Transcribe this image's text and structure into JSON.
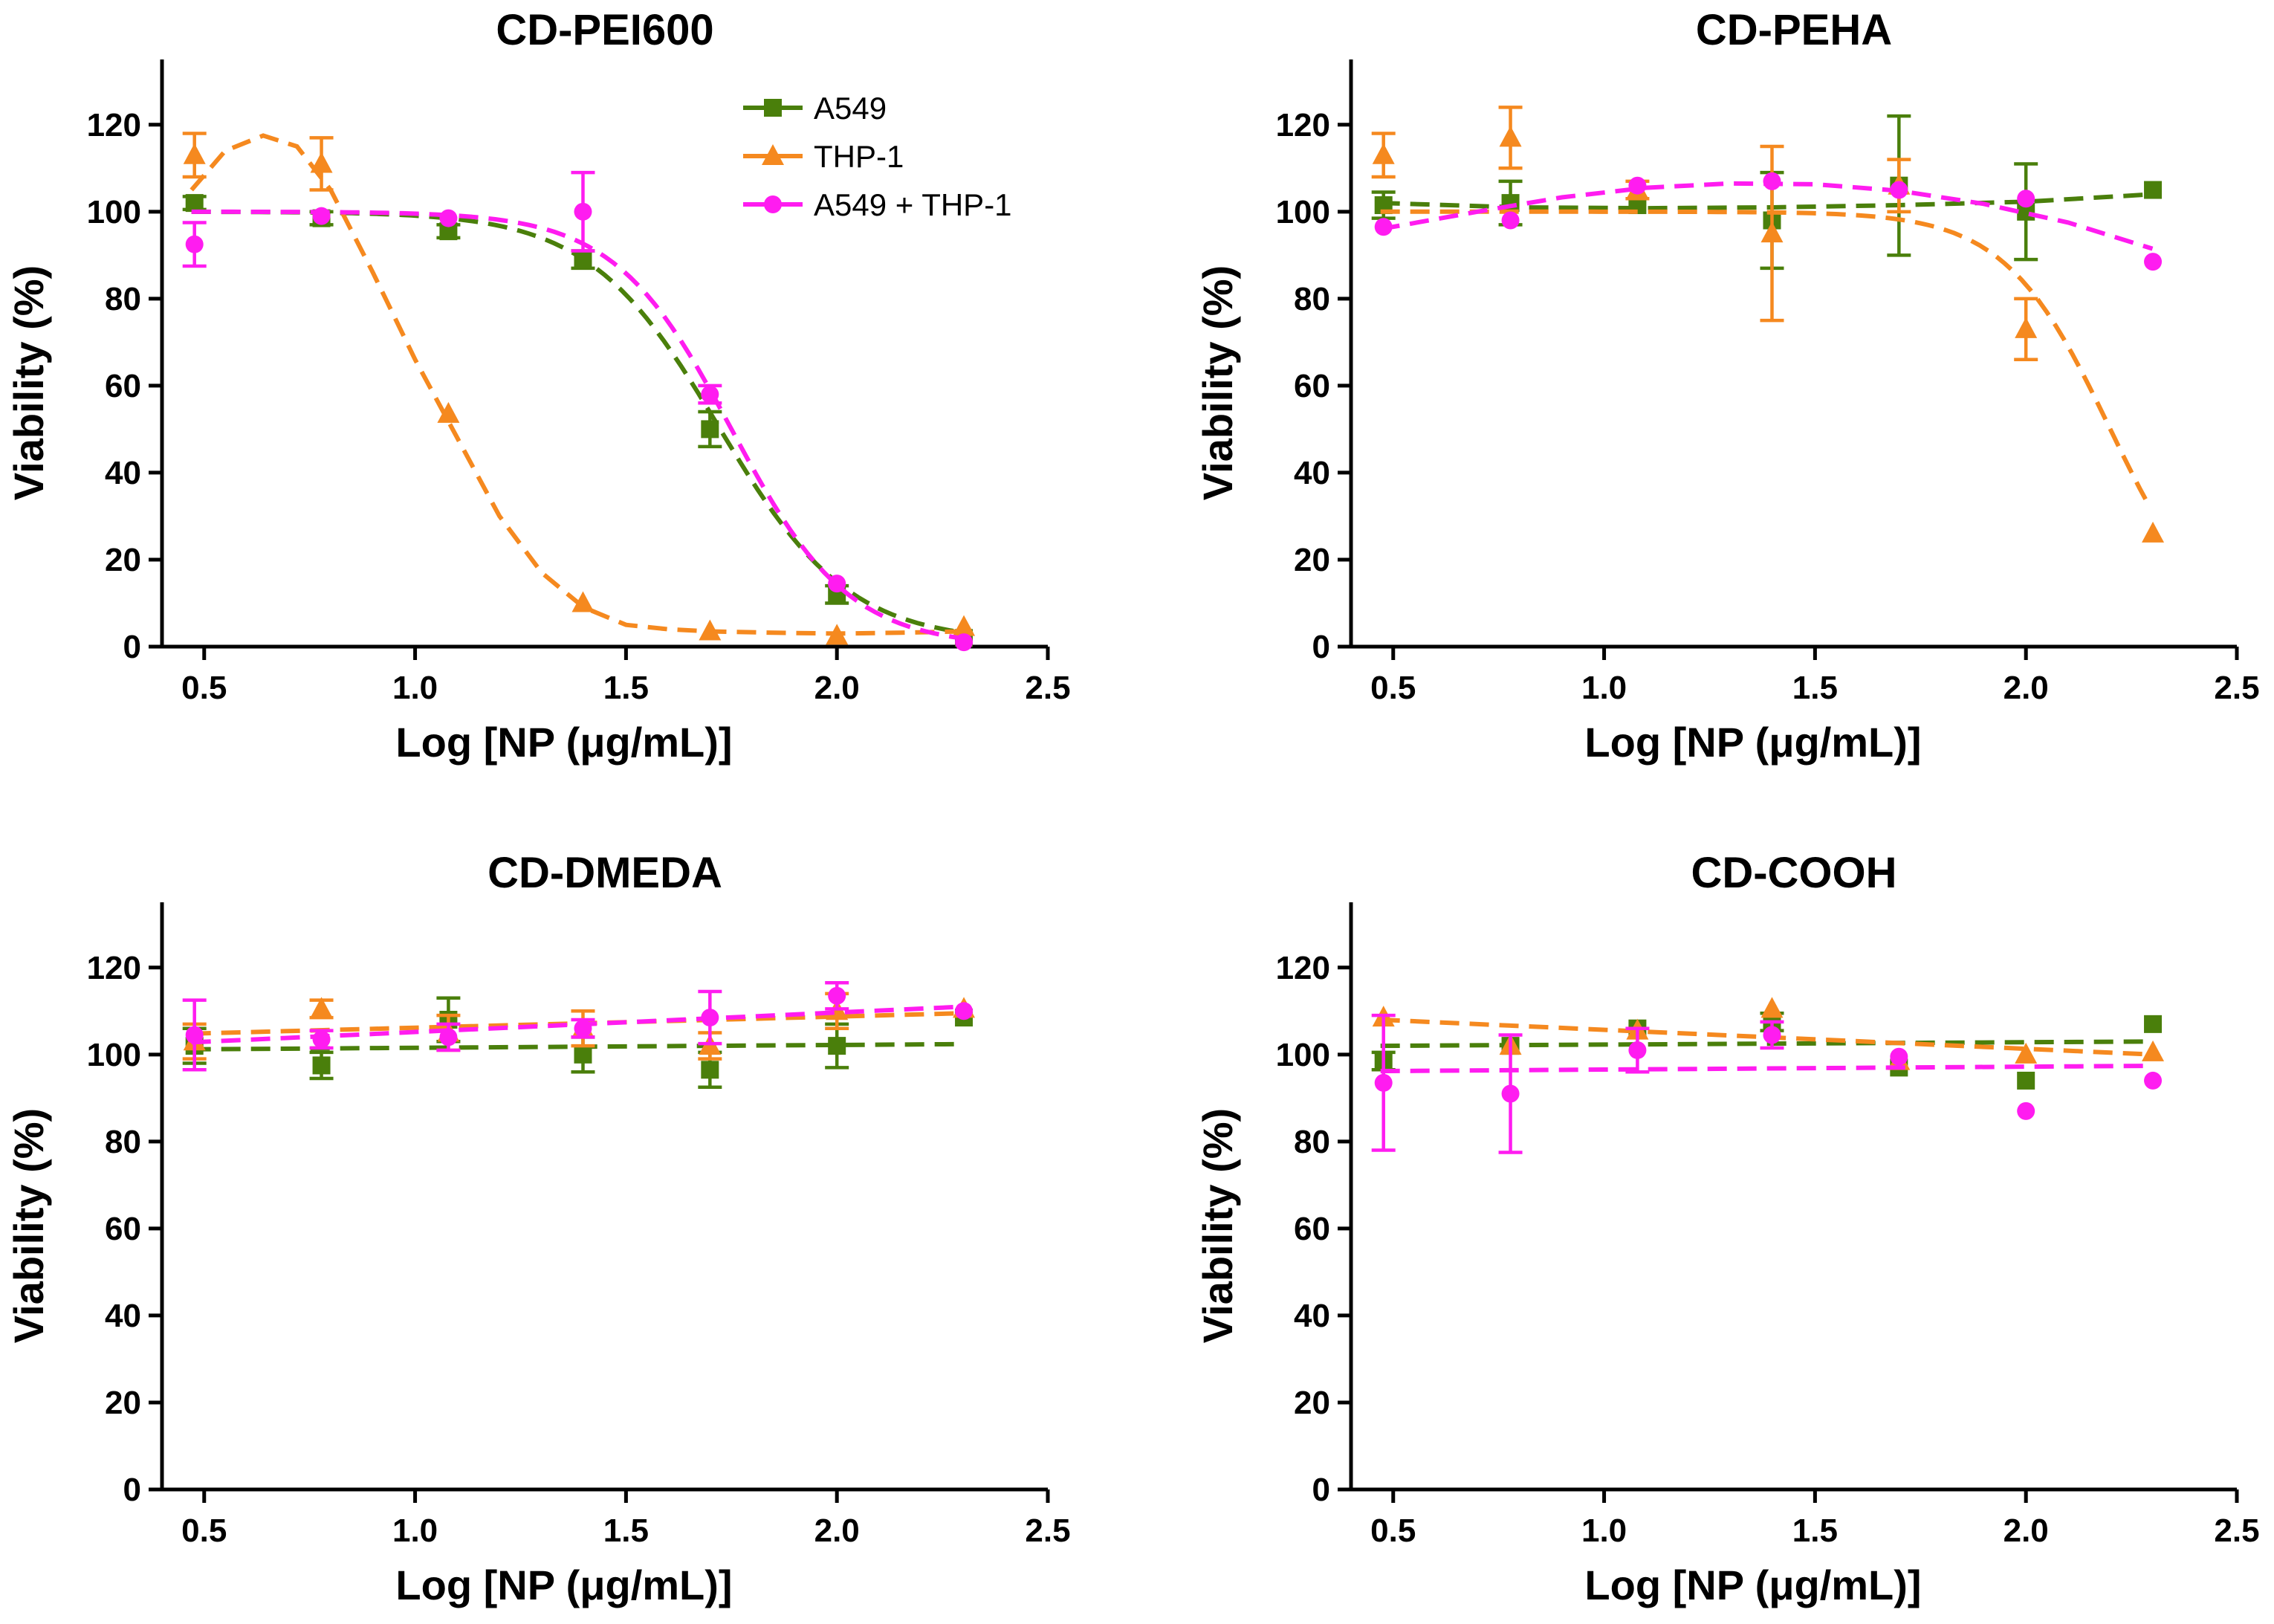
{
  "chart_data": [
    {
      "type": "scatter",
      "title": "CD-PEI600",
      "xlabel": "Log [NP (μg/mL)]",
      "ylabel": "Viability (%)",
      "xlim": [
        0.4,
        2.5
      ],
      "ylim": [
        0,
        135
      ],
      "xticks": [
        "0.5",
        "1.0",
        "1.5",
        "2.0",
        "2.5"
      ],
      "yticks": [
        "0",
        "20",
        "40",
        "60",
        "80",
        "100",
        "120"
      ],
      "legend": true,
      "legend_position": "top-right",
      "series": [
        {
          "name": "A549",
          "color": "#4a7f0b",
          "marker": "square",
          "x": [
            0.477,
            0.778,
            1.079,
            1.398,
            1.699,
            2.0,
            2.301
          ],
          "values": [
            102,
            98.5,
            95.5,
            89,
            50,
            12,
            2
          ],
          "err": [
            1.5,
            1.5,
            1.5,
            2,
            4,
            2,
            1
          ],
          "fit": {
            "type": "sigmoid",
            "top": 100,
            "bottom": 1,
            "x50": 1.72,
            "k": 6.5
          }
        },
        {
          "name": "THP-1",
          "color": "#f5891f",
          "marker": "triangle",
          "x": [
            0.477,
            0.778,
            1.079,
            1.398,
            1.699,
            2.0,
            2.301
          ],
          "values": [
            113,
            111,
            53.5,
            10,
            3.5,
            2.5,
            4.5
          ],
          "err": [
            5,
            6,
            1,
            1,
            0.5,
            0.5,
            0.5
          ],
          "fit": {
            "type": "points",
            "x": [
              0.47,
              0.55,
              0.64,
              0.72,
              0.8,
              0.9,
              1.0,
              1.1,
              1.2,
              1.3,
              1.4,
              1.5,
              1.6,
              1.7,
              1.85,
              2.0,
              2.15,
              2.3
            ],
            "y": [
              105,
              114,
              117.5,
              115,
              105,
              86,
              66,
              48,
              30,
              17,
              9,
              5,
              4,
              3.5,
              3.2,
              3.0,
              3.2,
              3.5
            ]
          }
        },
        {
          "name": "A549 + THP-1",
          "color": "#ff1cf0",
          "marker": "circle",
          "x": [
            0.477,
            0.778,
            1.079,
            1.398,
            1.699,
            2.0,
            2.301
          ],
          "values": [
            92.5,
            99,
            98.5,
            100,
            58,
            14.5,
            1
          ],
          "err": [
            5,
            1,
            1,
            9,
            2,
            1,
            0.5
          ],
          "fit": {
            "type": "sigmoid",
            "top": 100,
            "bottom": 0,
            "x50": 1.75,
            "k": 7.2
          }
        }
      ]
    },
    {
      "type": "scatter",
      "title": "CD-PEHA",
      "xlabel": "Log [NP (μg/mL)]",
      "ylabel": "Viability (%)",
      "xlim": [
        0.4,
        2.5
      ],
      "ylim": [
        0,
        135
      ],
      "xticks": [
        "0.5",
        "1.0",
        "1.5",
        "2.0",
        "2.5"
      ],
      "yticks": [
        "0",
        "20",
        "40",
        "60",
        "80",
        "100",
        "120"
      ],
      "series": [
        {
          "name": "A549",
          "color": "#4a7f0b",
          "marker": "square",
          "x": [
            0.477,
            0.778,
            1.079,
            1.398,
            1.699,
            2.0,
            2.301
          ],
          "values": [
            101.5,
            102,
            101.5,
            98,
            106,
            100,
            105
          ],
          "err": [
            3,
            5,
            1,
            11,
            16,
            11,
            1
          ],
          "fit": {
            "type": "points",
            "x": [
              0.47,
              0.8,
              1.1,
              1.4,
              1.7,
              2.0,
              2.3
            ],
            "y": [
              102,
              101,
              100.8,
              101,
              101.5,
              102.3,
              104
            ]
          }
        },
        {
          "name": "THP-1",
          "color": "#f5891f",
          "marker": "triangle",
          "x": [
            0.477,
            0.778,
            1.079,
            1.398,
            1.699,
            2.0,
            2.301
          ],
          "values": [
            113,
            117,
            105,
            95,
            106,
            73,
            26
          ],
          "err": [
            5,
            7,
            2,
            20,
            6,
            7,
            1
          ],
          "fit": {
            "type": "sigmoid",
            "top": 100,
            "bottom": 0,
            "x50": 2.2,
            "k": 8
          }
        },
        {
          "name": "A549 + THP-1",
          "color": "#ff1cf0",
          "marker": "circle",
          "x": [
            0.477,
            0.778,
            1.079,
            1.398,
            1.699,
            2.0,
            2.301
          ],
          "values": [
            96.5,
            98,
            106,
            107,
            105,
            103,
            88.5
          ],
          "err": [
            1,
            1,
            1,
            1,
            1,
            1,
            0.5
          ],
          "fit": {
            "type": "points",
            "x": [
              0.47,
              0.7,
              0.9,
              1.1,
              1.3,
              1.5,
              1.7,
              1.9,
              2.1,
              2.3
            ],
            "y": [
              96,
              100,
              103.3,
              105.5,
              106.5,
              106.3,
              104.8,
              101.8,
              97.5,
              91.5
            ]
          }
        }
      ]
    },
    {
      "type": "scatter",
      "title": "CD-DMEDA",
      "xlabel": "Log [NP (μg/mL)]",
      "ylabel": "Viability (%)",
      "xlim": [
        0.4,
        2.5
      ],
      "ylim": [
        0,
        135
      ],
      "xticks": [
        "0.5",
        "1.0",
        "1.5",
        "2.0",
        "2.5"
      ],
      "yticks": [
        "0",
        "20",
        "40",
        "60",
        "80",
        "100",
        "120"
      ],
      "series": [
        {
          "name": "A549",
          "color": "#4a7f0b",
          "marker": "square",
          "x": [
            0.477,
            0.778,
            1.079,
            1.398,
            1.699,
            2.0,
            2.301
          ],
          "values": [
            102,
            97.5,
            108,
            100,
            96.5,
            102,
            108.5
          ],
          "err": [
            4,
            3,
            5,
            4,
            4,
            5,
            1
          ],
          "fit": {
            "type": "points",
            "x": [
              0.47,
              2.3
            ],
            "y": [
              101.2,
              102.4
            ]
          }
        },
        {
          "name": "THP-1",
          "color": "#f5891f",
          "marker": "triangle",
          "x": [
            0.477,
            0.778,
            1.079,
            1.398,
            1.699,
            2.0,
            2.301
          ],
          "values": [
            103,
            110.5,
            105,
            106,
            102,
            110,
            110.5
          ],
          "err": [
            4,
            2,
            4,
            4,
            3,
            4,
            1
          ],
          "fit": {
            "type": "points",
            "x": [
              0.47,
              2.3
            ],
            "y": [
              104.8,
              109.5
            ]
          }
        },
        {
          "name": "A549 + THP-1",
          "color": "#ff1cf0",
          "marker": "circle",
          "x": [
            0.477,
            0.778,
            1.079,
            1.398,
            1.699,
            2.0,
            2.301
          ],
          "values": [
            104.5,
            103.5,
            104,
            106,
            108.5,
            113.5,
            110
          ],
          "err": [
            8,
            2,
            3,
            2,
            6,
            3,
            1
          ],
          "fit": {
            "type": "points",
            "x": [
              0.47,
              2.3
            ],
            "y": [
              102.8,
              111
            ]
          }
        }
      ]
    },
    {
      "type": "scatter",
      "title": "CD-COOH",
      "xlabel": "Log [NP (μg/mL)]",
      "ylabel": "Viability (%)",
      "xlim": [
        0.4,
        2.5
      ],
      "ylim": [
        0,
        135
      ],
      "xticks": [
        "0.5",
        "1.0",
        "1.5",
        "2.0",
        "2.5"
      ],
      "yticks": [
        "0",
        "20",
        "40",
        "60",
        "80",
        "100",
        "120"
      ],
      "series": [
        {
          "name": "A549",
          "color": "#4a7f0b",
          "marker": "square",
          "x": [
            0.477,
            0.778,
            1.079,
            1.398,
            1.699,
            2.0,
            2.301
          ],
          "values": [
            98.5,
            102,
            106,
            107.5,
            97,
            94,
            107
          ],
          "err": [
            2,
            1,
            1,
            2,
            1,
            1,
            1
          ],
          "fit": {
            "type": "points",
            "x": [
              0.47,
              2.3
            ],
            "y": [
              102,
              103
            ]
          }
        },
        {
          "name": "THP-1",
          "color": "#f5891f",
          "marker": "triangle",
          "x": [
            0.477,
            0.778,
            1.079,
            1.398,
            1.699,
            2.0,
            2.301
          ],
          "values": [
            108.5,
            102,
            105.5,
            110.5,
            98.5,
            100,
            100.5
          ],
          "err": [
            1,
            1,
            1,
            1,
            1,
            1,
            1
          ],
          "fit": {
            "type": "points",
            "x": [
              0.47,
              2.3
            ],
            "y": [
              108,
              100
            ]
          }
        },
        {
          "name": "A549 + THP-1",
          "color": "#ff1cf0",
          "marker": "circle",
          "x": [
            0.477,
            0.778,
            1.079,
            1.398,
            1.699,
            2.0,
            2.301
          ],
          "values": [
            93.5,
            91,
            101,
            104.5,
            99.5,
            87,
            94
          ],
          "err": [
            15.5,
            13.5,
            5,
            3,
            1,
            1,
            1
          ],
          "fit": {
            "type": "points",
            "x": [
              0.47,
              2.3
            ],
            "y": [
              96.2,
              97.4
            ]
          }
        }
      ]
    }
  ]
}
